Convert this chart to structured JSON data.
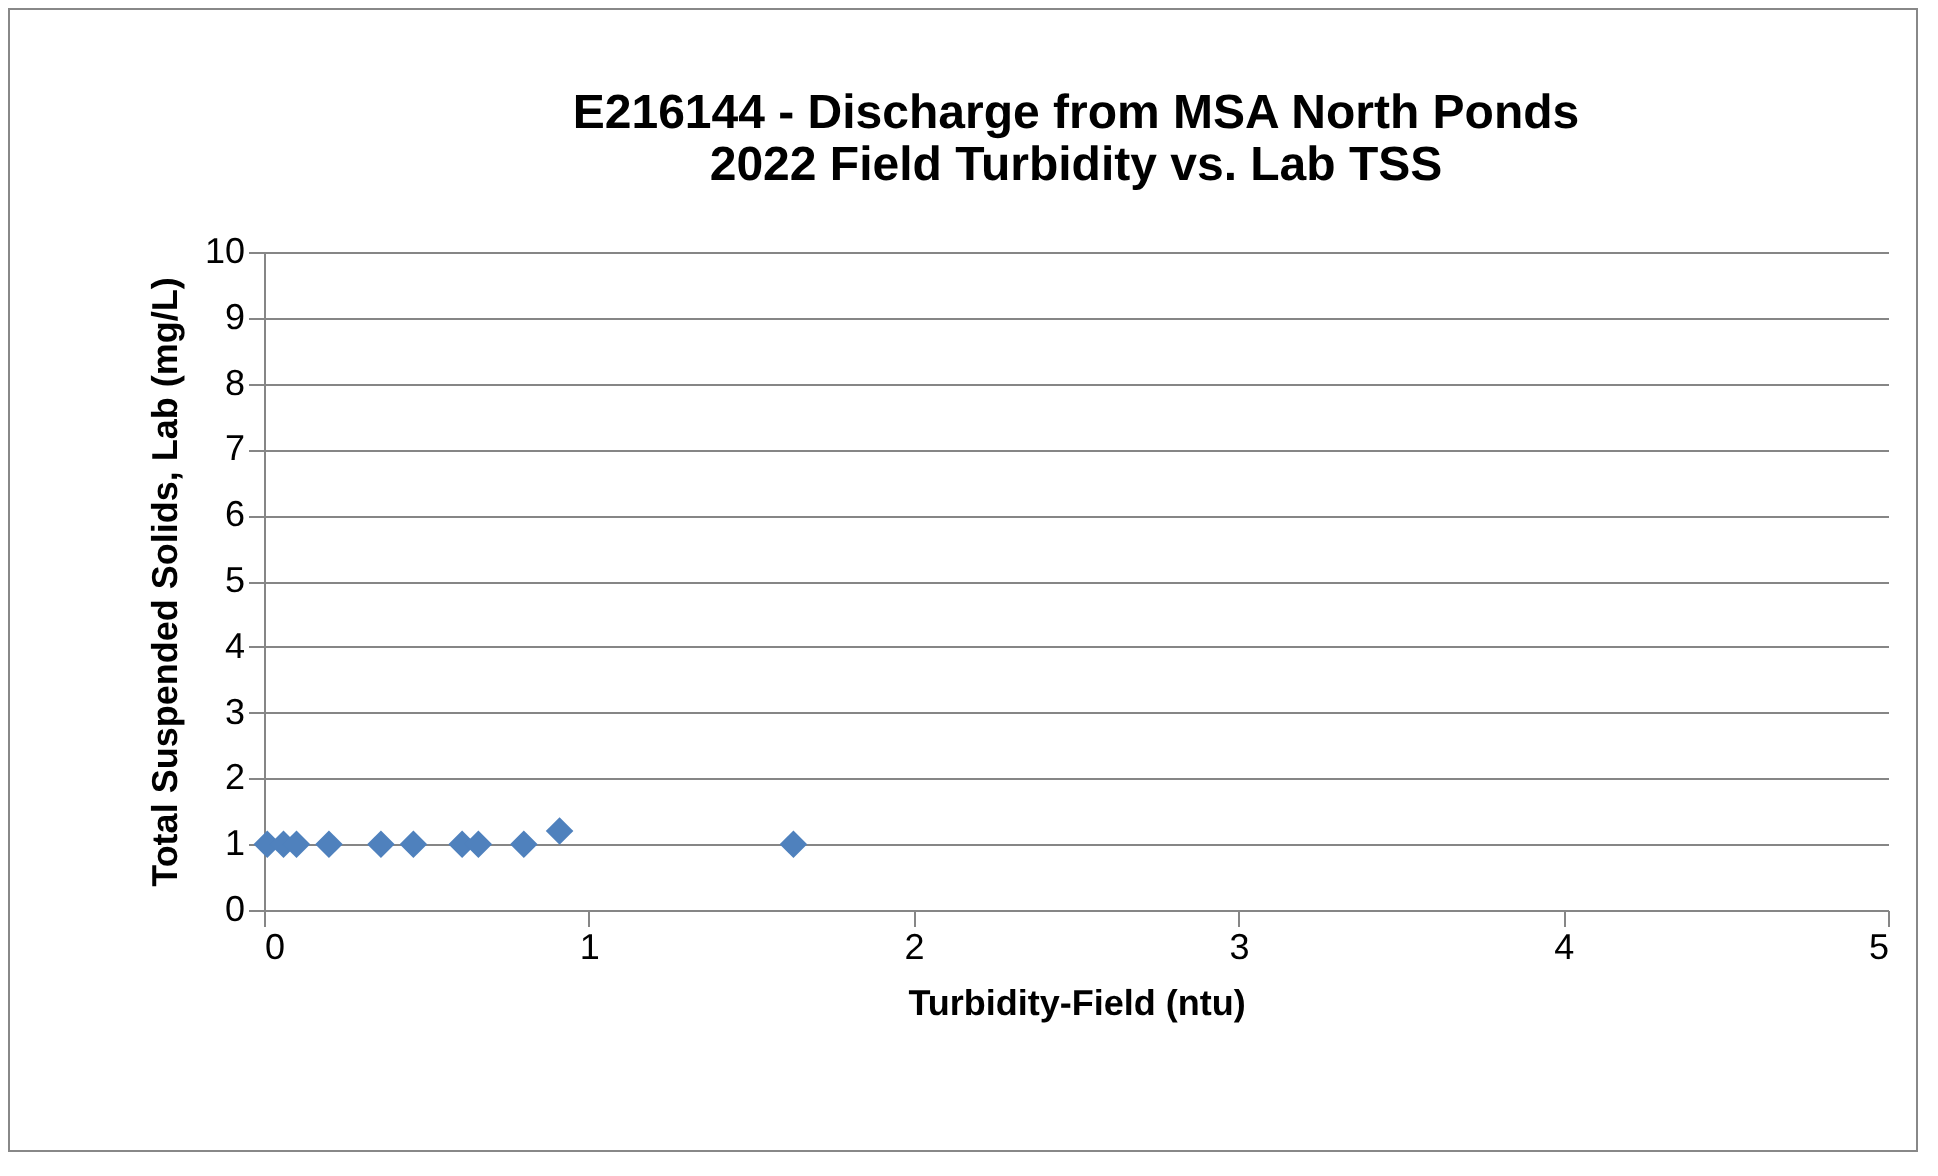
{
  "chart_data": {
    "type": "scatter",
    "title": [
      "E216144 - Discharge from MSA North Ponds",
      "2022 Field Turbidity vs. Lab TSS"
    ],
    "xlabel": "Turbidity-Field (ntu)",
    "ylabel": "Total Suspended Solids, Lab (mg/L)",
    "x": [
      0.01,
      0.06,
      0.1,
      0.2,
      0.36,
      0.46,
      0.61,
      0.66,
      0.8,
      0.91,
      1.63
    ],
    "series": [
      {
        "color": "#4f81bd",
        "values": [
          1,
          1,
          1,
          1,
          1,
          1,
          1,
          1,
          1,
          1.2,
          1
        ]
      }
    ],
    "xlim": [
      0,
      5
    ],
    "xticks": [
      0,
      1,
      2,
      3,
      4,
      5
    ],
    "ylim": [
      0,
      10
    ],
    "yticks": [
      0,
      1,
      2,
      3,
      4,
      5,
      6,
      7,
      8,
      9,
      10
    ],
    "grid": "y",
    "marker": "diamond"
  }
}
